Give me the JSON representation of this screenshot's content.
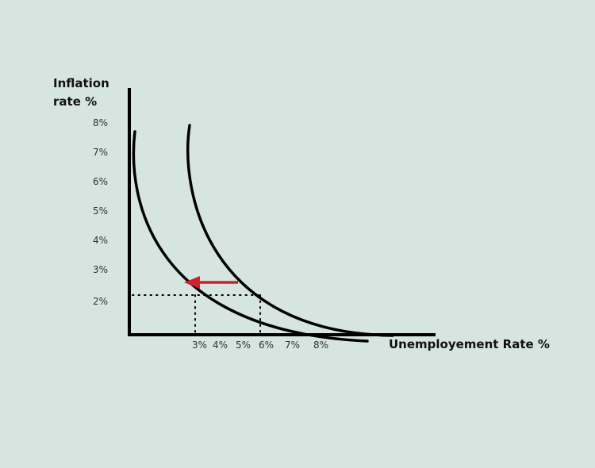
{
  "labels": {
    "y_title_line1": "Inflation",
    "y_title_line2": "rate %",
    "x_title": "Unemployement Rate %"
  },
  "y_ticks": [
    "8%",
    "7%",
    "6%",
    "5%",
    "4%",
    "3%",
    "2%"
  ],
  "x_ticks": [
    "3%",
    "4%",
    "5%",
    "6%",
    "7%",
    "8%"
  ],
  "colors": {
    "background": "#d6e5df",
    "axis": "#000000",
    "curve": "#000000",
    "arrow": "#d0202a",
    "guide": "#000000"
  },
  "diagram": {
    "curves": [
      "original-phillips-curve",
      "shifted-phillips-curve"
    ],
    "arrow": "shift-left",
    "guides": "dotted"
  }
}
